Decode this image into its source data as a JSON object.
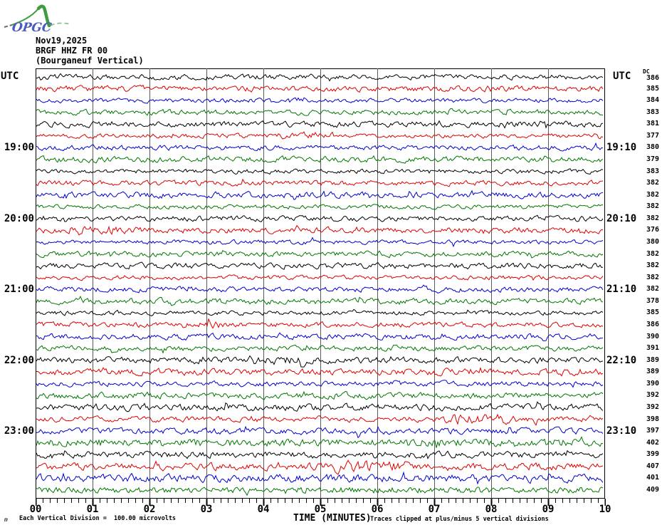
{
  "logo": {
    "text": "OPGC"
  },
  "header": {
    "date": "Nov19,2025",
    "station": "BRGF HHZ FR 00",
    "location": "(Bourganeuf Vertical)"
  },
  "left_axis": {
    "title": "UTC",
    "hour_labels": [
      {
        "row": 6,
        "label": "19:00"
      },
      {
        "row": 12,
        "label": "20:00"
      },
      {
        "row": 18,
        "label": "21:00"
      },
      {
        "row": 24,
        "label": "22:00"
      },
      {
        "row": 30,
        "label": "23:00"
      }
    ]
  },
  "right_axis": {
    "title": "UTC",
    "dc_header": "DC",
    "hour_labels": [
      {
        "row": 6,
        "label": "19:10"
      },
      {
        "row": 12,
        "label": "20:10"
      },
      {
        "row": 18,
        "label": "21:10"
      },
      {
        "row": 24,
        "label": "22:10"
      },
      {
        "row": 30,
        "label": "23:10"
      }
    ]
  },
  "x_axis": {
    "tick_labels": [
      "00",
      "01",
      "02",
      "03",
      "04",
      "05",
      "06",
      "07",
      "08",
      "09",
      "10"
    ],
    "title": "TIME (MINUTES)"
  },
  "footer": {
    "scale_note": "Each Vertical Division =  100.00 microvolts",
    "clip_note": "Traces clipped at plus/minus 5 vertical divisions",
    "margin_mark": "m"
  },
  "trace_colors": {
    "cycle": [
      "black",
      "red",
      "blue",
      "green"
    ],
    "hex": {
      "black": "#000000",
      "red": "#dd0000",
      "blue": "#0000cc",
      "green": "#007700"
    },
    "gridline": "#5a5a5a"
  },
  "chart_data": {
    "type": "line",
    "title": "OPGC helicorder — BRGF HHZ FR 00 (Bourganeuf Vertical), Nov19,2025",
    "xlabel": "TIME (MINUTES)",
    "x_range_minutes": [
      0,
      10
    ],
    "row_duration_minutes": 10,
    "minor_tick_minutes": 0.125,
    "scale": "Each Vertical Division = 100.00 microvolts",
    "clipping": "Traces clipped at plus/minus 5 vertical divisions",
    "waveform": "continuous ambient seismic noise (not digitized point data)",
    "left_hour_ticks": [
      "19:00",
      "20:00",
      "21:00",
      "22:00",
      "23:00"
    ],
    "right_hour_ticks": [
      "19:10",
      "20:10",
      "21:10",
      "22:10",
      "23:10"
    ],
    "rows": [
      {
        "start_utc": "18:00",
        "end_utc": "18:10",
        "color": "black",
        "dc": 386
      },
      {
        "start_utc": "18:10",
        "end_utc": "18:20",
        "color": "red",
        "dc": 385
      },
      {
        "start_utc": "18:20",
        "end_utc": "18:30",
        "color": "blue",
        "dc": 384
      },
      {
        "start_utc": "18:30",
        "end_utc": "18:40",
        "color": "green",
        "dc": 383
      },
      {
        "start_utc": "18:40",
        "end_utc": "18:50",
        "color": "black",
        "dc": 381
      },
      {
        "start_utc": "18:50",
        "end_utc": "19:00",
        "color": "red",
        "dc": 377
      },
      {
        "start_utc": "19:00",
        "end_utc": "19:10",
        "color": "blue",
        "dc": 380
      },
      {
        "start_utc": "19:10",
        "end_utc": "19:20",
        "color": "green",
        "dc": 379
      },
      {
        "start_utc": "19:20",
        "end_utc": "19:30",
        "color": "black",
        "dc": 383
      },
      {
        "start_utc": "19:30",
        "end_utc": "19:40",
        "color": "red",
        "dc": 382
      },
      {
        "start_utc": "19:40",
        "end_utc": "19:50",
        "color": "blue",
        "dc": 382
      },
      {
        "start_utc": "19:50",
        "end_utc": "20:00",
        "color": "green",
        "dc": 382
      },
      {
        "start_utc": "20:00",
        "end_utc": "20:10",
        "color": "black",
        "dc": 382
      },
      {
        "start_utc": "20:10",
        "end_utc": "20:20",
        "color": "red",
        "dc": 376
      },
      {
        "start_utc": "20:20",
        "end_utc": "20:30",
        "color": "blue",
        "dc": 380
      },
      {
        "start_utc": "20:30",
        "end_utc": "20:40",
        "color": "green",
        "dc": 382
      },
      {
        "start_utc": "20:40",
        "end_utc": "20:50",
        "color": "black",
        "dc": 382
      },
      {
        "start_utc": "20:50",
        "end_utc": "21:00",
        "color": "red",
        "dc": 382
      },
      {
        "start_utc": "21:00",
        "end_utc": "21:10",
        "color": "blue",
        "dc": 382
      },
      {
        "start_utc": "21:10",
        "end_utc": "21:20",
        "color": "green",
        "dc": 378
      },
      {
        "start_utc": "21:20",
        "end_utc": "21:30",
        "color": "black",
        "dc": 385
      },
      {
        "start_utc": "21:30",
        "end_utc": "21:40",
        "color": "red",
        "dc": 386
      },
      {
        "start_utc": "21:40",
        "end_utc": "21:50",
        "color": "blue",
        "dc": 390
      },
      {
        "start_utc": "21:50",
        "end_utc": "22:00",
        "color": "green",
        "dc": 391
      },
      {
        "start_utc": "22:00",
        "end_utc": "22:10",
        "color": "black",
        "dc": 389
      },
      {
        "start_utc": "22:10",
        "end_utc": "22:20",
        "color": "red",
        "dc": 389
      },
      {
        "start_utc": "22:20",
        "end_utc": "22:30",
        "color": "blue",
        "dc": 390
      },
      {
        "start_utc": "22:30",
        "end_utc": "22:40",
        "color": "green",
        "dc": 392
      },
      {
        "start_utc": "22:40",
        "end_utc": "22:50",
        "color": "black",
        "dc": 392
      },
      {
        "start_utc": "22:50",
        "end_utc": "23:00",
        "color": "red",
        "dc": 398
      },
      {
        "start_utc": "23:00",
        "end_utc": "23:10",
        "color": "blue",
        "dc": 397
      },
      {
        "start_utc": "23:10",
        "end_utc": "23:20",
        "color": "green",
        "dc": 402
      },
      {
        "start_utc": "23:20",
        "end_utc": "23:30",
        "color": "black",
        "dc": 399
      },
      {
        "start_utc": "23:30",
        "end_utc": "23:40",
        "color": "red",
        "dc": 407
      },
      {
        "start_utc": "23:40",
        "end_utc": "23:50",
        "color": "blue",
        "dc": 401
      },
      {
        "start_utc": "23:50",
        "end_utc": "24:00",
        "color": "green",
        "dc": 409
      }
    ]
  }
}
